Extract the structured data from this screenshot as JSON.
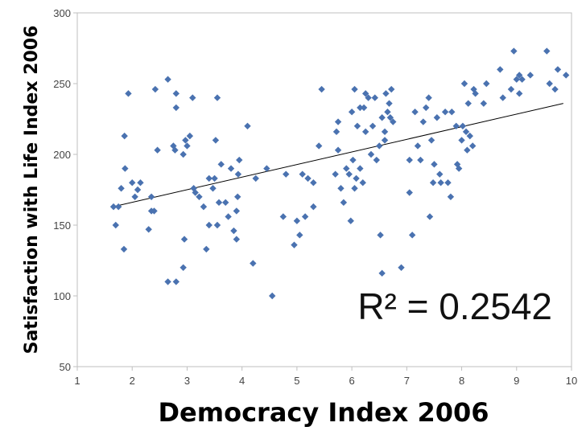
{
  "chart_data": {
    "type": "scatter",
    "title": "",
    "xlabel": "Democracy Index 2006",
    "ylabel": "Satisfaction with Life Index 2006",
    "xlim": [
      1,
      10
    ],
    "ylim": [
      50,
      300
    ],
    "x_ticks": [
      "1",
      "2",
      "3",
      "4",
      "5",
      "6",
      "7",
      "8",
      "9",
      "10"
    ],
    "y_ticks": [
      "50",
      "100",
      "150",
      "200",
      "250",
      "300"
    ],
    "grid": false,
    "annotation": "R² = 0.2542",
    "marker_color": "#4a72b0",
    "trendline": {
      "x": [
        1.65,
        9.85
      ],
      "y": [
        163,
        236
      ]
    },
    "points": [
      [
        1.66,
        163
      ],
      [
        1.7,
        150
      ],
      [
        1.75,
        163
      ],
      [
        1.8,
        176
      ],
      [
        1.85,
        133
      ],
      [
        1.86,
        213
      ],
      [
        1.87,
        190
      ],
      [
        1.93,
        243
      ],
      [
        2.0,
        180
      ],
      [
        2.05,
        170
      ],
      [
        2.1,
        175
      ],
      [
        2.15,
        180
      ],
      [
        2.3,
        147
      ],
      [
        2.35,
        160
      ],
      [
        2.35,
        170
      ],
      [
        2.4,
        160
      ],
      [
        2.42,
        246
      ],
      [
        2.46,
        203
      ],
      [
        2.65,
        253
      ],
      [
        2.65,
        110
      ],
      [
        2.75,
        206
      ],
      [
        2.78,
        203
      ],
      [
        2.8,
        110
      ],
      [
        2.8,
        243
      ],
      [
        2.8,
        233
      ],
      [
        2.93,
        200
      ],
      [
        2.93,
        120
      ],
      [
        2.95,
        140
      ],
      [
        2.97,
        210
      ],
      [
        3.0,
        206
      ],
      [
        3.05,
        213
      ],
      [
        3.1,
        240
      ],
      [
        3.12,
        176
      ],
      [
        3.15,
        173
      ],
      [
        3.22,
        170
      ],
      [
        3.3,
        163
      ],
      [
        3.35,
        133
      ],
      [
        3.4,
        150
      ],
      [
        3.4,
        183
      ],
      [
        3.47,
        176
      ],
      [
        3.5,
        183
      ],
      [
        3.52,
        210
      ],
      [
        3.55,
        240
      ],
      [
        3.55,
        150
      ],
      [
        3.58,
        166
      ],
      [
        3.62,
        193
      ],
      [
        3.7,
        166
      ],
      [
        3.75,
        156
      ],
      [
        3.8,
        190
      ],
      [
        3.85,
        146
      ],
      [
        3.9,
        140
      ],
      [
        3.9,
        160
      ],
      [
        3.92,
        170
      ],
      [
        3.93,
        186
      ],
      [
        3.95,
        196
      ],
      [
        4.1,
        220
      ],
      [
        4.2,
        123
      ],
      [
        4.25,
        183
      ],
      [
        4.45,
        190
      ],
      [
        4.55,
        100
      ],
      [
        4.75,
        156
      ],
      [
        4.8,
        186
      ],
      [
        4.95,
        136
      ],
      [
        5.0,
        153
      ],
      [
        5.05,
        143
      ],
      [
        5.1,
        186
      ],
      [
        5.15,
        156
      ],
      [
        5.2,
        183
      ],
      [
        5.3,
        163
      ],
      [
        5.3,
        180
      ],
      [
        5.4,
        206
      ],
      [
        5.45,
        246
      ],
      [
        5.7,
        186
      ],
      [
        5.72,
        216
      ],
      [
        5.75,
        223
      ],
      [
        5.75,
        203
      ],
      [
        5.8,
        176
      ],
      [
        5.85,
        166
      ],
      [
        5.9,
        190
      ],
      [
        5.95,
        186
      ],
      [
        5.98,
        153
      ],
      [
        6.0,
        230
      ],
      [
        6.02,
        196
      ],
      [
        6.05,
        246
      ],
      [
        6.05,
        176
      ],
      [
        6.08,
        183
      ],
      [
        6.1,
        220
      ],
      [
        6.15,
        233
      ],
      [
        6.15,
        190
      ],
      [
        6.2,
        180
      ],
      [
        6.22,
        233
      ],
      [
        6.25,
        243
      ],
      [
        6.25,
        216
      ],
      [
        6.3,
        240
      ],
      [
        6.35,
        200
      ],
      [
        6.38,
        220
      ],
      [
        6.42,
        240
      ],
      [
        6.45,
        196
      ],
      [
        6.5,
        206
      ],
      [
        6.52,
        143
      ],
      [
        6.55,
        116
      ],
      [
        6.55,
        226
      ],
      [
        6.6,
        216
      ],
      [
        6.6,
        210
      ],
      [
        6.62,
        243
      ],
      [
        6.65,
        230
      ],
      [
        6.68,
        236
      ],
      [
        6.7,
        226
      ],
      [
        6.72,
        246
      ],
      [
        6.75,
        223
      ],
      [
        6.9,
        120
      ],
      [
        7.05,
        196
      ],
      [
        7.05,
        173
      ],
      [
        7.1,
        143
      ],
      [
        7.15,
        230
      ],
      [
        7.2,
        206
      ],
      [
        7.25,
        196
      ],
      [
        7.3,
        223
      ],
      [
        7.35,
        233
      ],
      [
        7.4,
        240
      ],
      [
        7.42,
        156
      ],
      [
        7.45,
        210
      ],
      [
        7.48,
        180
      ],
      [
        7.5,
        193
      ],
      [
        7.55,
        226
      ],
      [
        7.6,
        186
      ],
      [
        7.62,
        180
      ],
      [
        7.7,
        230
      ],
      [
        7.75,
        180
      ],
      [
        7.8,
        170
      ],
      [
        7.82,
        230
      ],
      [
        7.9,
        220
      ],
      [
        7.92,
        193
      ],
      [
        7.95,
        190
      ],
      [
        8.0,
        210
      ],
      [
        8.02,
        220
      ],
      [
        8.05,
        250
      ],
      [
        8.08,
        216
      ],
      [
        8.1,
        203
      ],
      [
        8.12,
        236
      ],
      [
        8.15,
        213
      ],
      [
        8.2,
        206
      ],
      [
        8.22,
        246
      ],
      [
        8.25,
        243
      ],
      [
        8.4,
        236
      ],
      [
        8.45,
        250
      ],
      [
        8.7,
        260
      ],
      [
        8.75,
        240
      ],
      [
        8.9,
        246
      ],
      [
        8.95,
        273
      ],
      [
        9.0,
        253
      ],
      [
        9.05,
        256
      ],
      [
        9.05,
        243
      ],
      [
        9.1,
        253
      ],
      [
        9.25,
        256
      ],
      [
        9.55,
        273
      ],
      [
        9.6,
        250
      ],
      [
        9.7,
        246
      ],
      [
        9.75,
        260
      ],
      [
        9.9,
        256
      ]
    ]
  }
}
